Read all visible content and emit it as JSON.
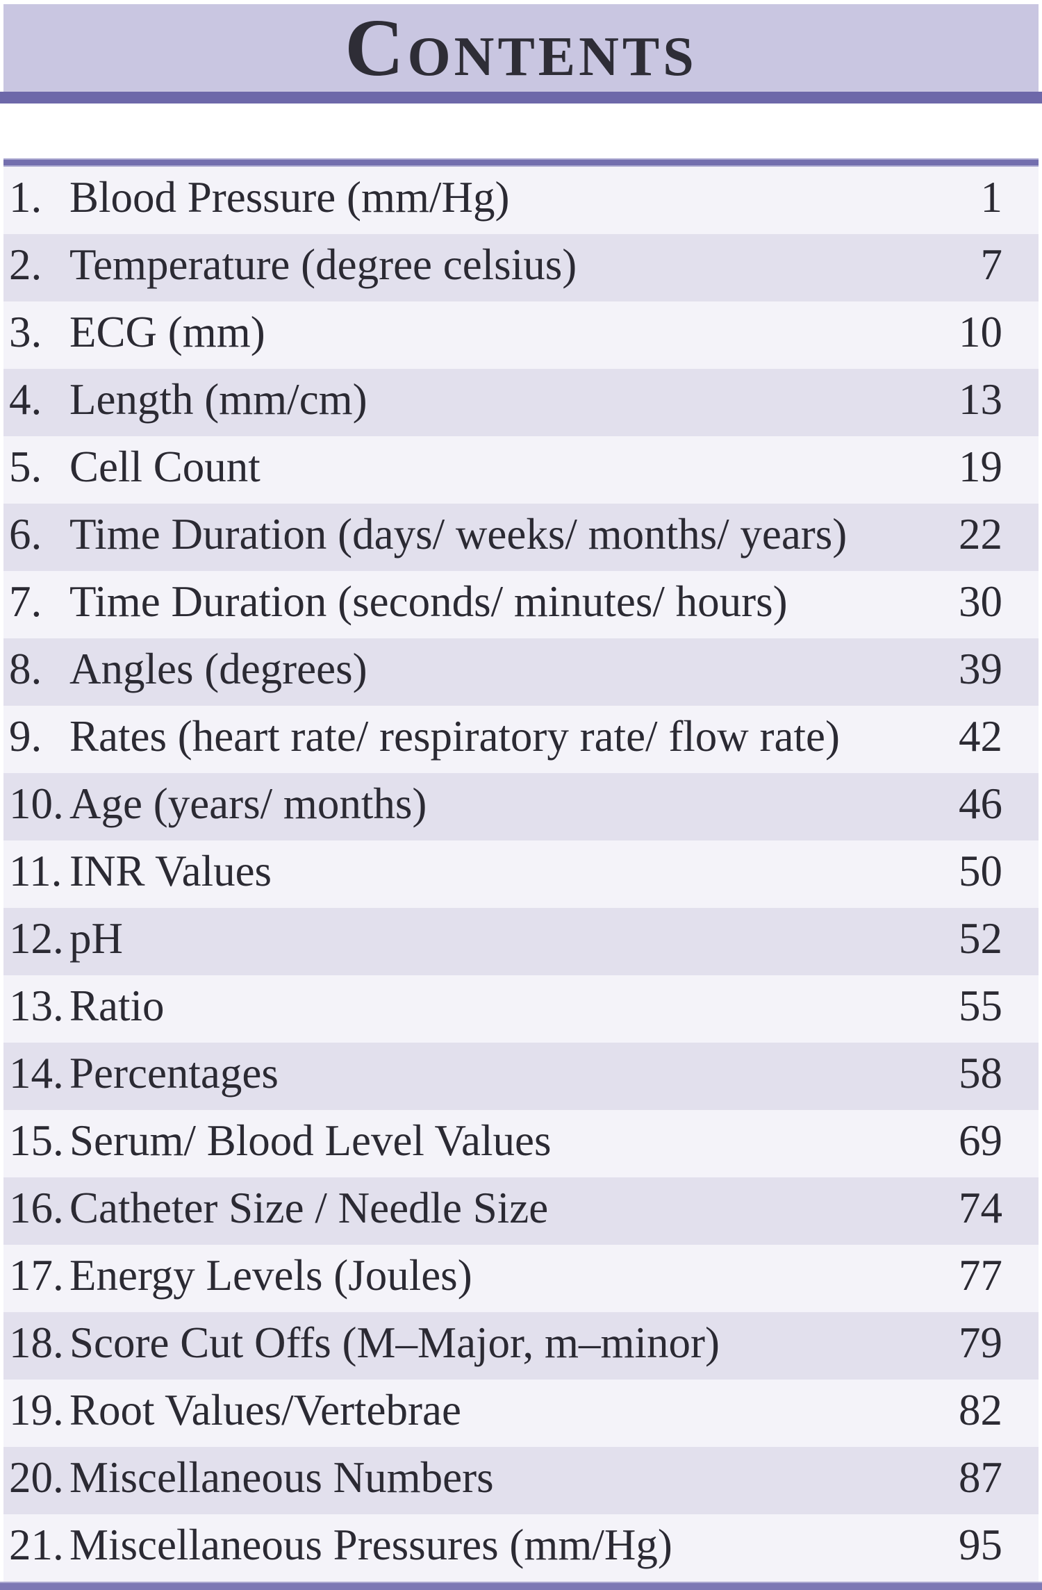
{
  "header": {
    "title_initial": "C",
    "title_rest": "ONTENTS"
  },
  "toc": {
    "entries": [
      {
        "num": "1.",
        "title": "Blood Pressure (mm/Hg)",
        "page": "1"
      },
      {
        "num": "2.",
        "title": "Temperature (degree celsius)",
        "page": "7"
      },
      {
        "num": "3.",
        "title": "ECG (mm)",
        "page": "10"
      },
      {
        "num": "4.",
        "title": "Length (mm/cm)",
        "page": "13"
      },
      {
        "num": "5.",
        "title": "Cell Count",
        "page": "19"
      },
      {
        "num": "6.",
        "title": "Time Duration (days/ weeks/ months/ years)",
        "page": "22"
      },
      {
        "num": "7.",
        "title": "Time Duration (seconds/ minutes/ hours)",
        "page": "30"
      },
      {
        "num": "8.",
        "title": "Angles (degrees)",
        "page": "39"
      },
      {
        "num": "9.",
        "title": "Rates (heart rate/ respiratory rate/ flow rate)",
        "page": "42"
      },
      {
        "num": "10.",
        "title": "Age (years/ months)",
        "page": "46"
      },
      {
        "num": "11.",
        "title": "INR Values",
        "page": "50"
      },
      {
        "num": "12.",
        "title": "pH",
        "page": "52"
      },
      {
        "num": "13.",
        "title": "Ratio",
        "page": "55"
      },
      {
        "num": "14.",
        "title": "Percentages",
        "page": "58"
      },
      {
        "num": "15.",
        "title": "Serum/ Blood Level Values",
        "page": "69"
      },
      {
        "num": "16.",
        "title": "Catheter Size / Needle Size",
        "page": "74"
      },
      {
        "num": "17.",
        "title": "Energy Levels (Joules)",
        "page": "77"
      },
      {
        "num": "18.",
        "title": "Score Cut Offs (M–Major, m–minor)",
        "page": "79"
      },
      {
        "num": "19.",
        "title": "Root Values/Vertebrae",
        "page": "82"
      },
      {
        "num": "20.",
        "title": "Miscellaneous Numbers",
        "page": "87"
      },
      {
        "num": "21.",
        "title": "Miscellaneous Pressures (mm/Hg)",
        "page": "95"
      }
    ]
  },
  "colors": {
    "header_band": "#c9c6e1",
    "header_rule": "#6d68a9",
    "list_rule": "#736eae",
    "row_light": "#f4f3f9",
    "row_dark": "#e2e0ed",
    "text": "#2b2a33",
    "bottom_bar": "#7d78b4"
  }
}
